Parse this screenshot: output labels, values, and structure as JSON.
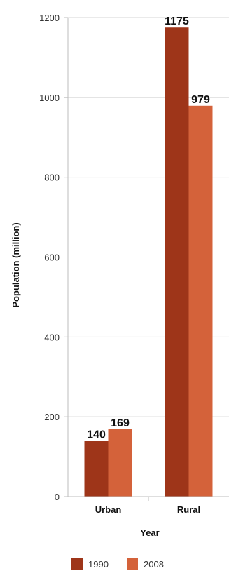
{
  "chart_data": {
    "type": "bar",
    "categories": [
      "Urban",
      "Rural"
    ],
    "series": [
      {
        "name": "1990",
        "values": [
          140,
          1175
        ],
        "color": "#9E3519"
      },
      {
        "name": "2008",
        "values": [
          169,
          979
        ],
        "color": "#D4623A"
      }
    ],
    "xlabel": "Year",
    "ylabel": "Population (million)",
    "ylim": [
      0,
      1200
    ],
    "yticks": [
      0,
      200,
      400,
      600,
      800,
      1000,
      1200
    ],
    "grid": true,
    "legend_position": "bottom"
  }
}
